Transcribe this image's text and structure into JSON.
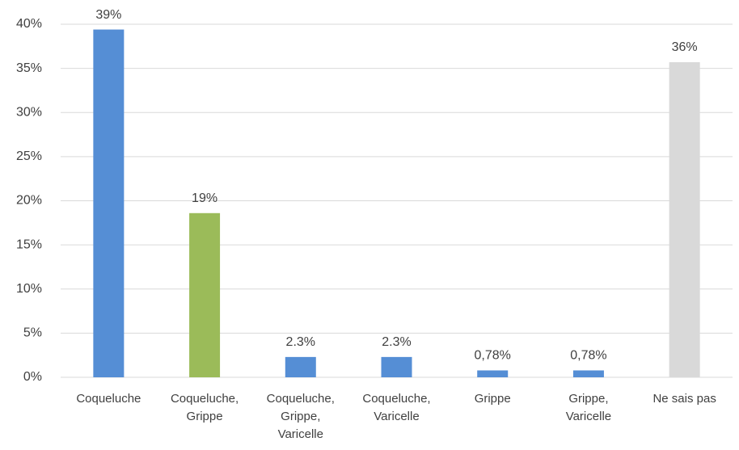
{
  "chart_data": {
    "type": "bar",
    "categories": [
      "Coqueluche",
      "Coqueluche, Grippe",
      "Coqueluche, Grippe, Varicelle",
      "Coqueluche, Varicelle",
      "Grippe",
      "Grippe, Varicelle",
      "Ne sais pas"
    ],
    "values": [
      39.4,
      18.6,
      2.3,
      2.3,
      0.78,
      0.78,
      35.7
    ],
    "value_labels": [
      "39%",
      "19%",
      "2.3%",
      "2.3%",
      "0,78%",
      "0,78%",
      "36%"
    ],
    "colors": [
      "#558ed5",
      "#9bbb59",
      "#558ed5",
      "#558ed5",
      "#558ed5",
      "#558ed5",
      "#d9d9d9"
    ],
    "ylim": [
      0,
      40
    ],
    "yticks": [
      {
        "value": 0,
        "label": "0%"
      },
      {
        "value": 5,
        "label": "5%"
      },
      {
        "value": 10,
        "label": "10%"
      },
      {
        "value": 15,
        "label": "15%"
      },
      {
        "value": 20,
        "label": "20%"
      },
      {
        "value": 25,
        "label": "25%"
      },
      {
        "value": 30,
        "label": "30%"
      },
      {
        "value": 35,
        "label": "35%"
      },
      {
        "value": 40,
        "label": "40%"
      }
    ],
    "grid": true
  }
}
